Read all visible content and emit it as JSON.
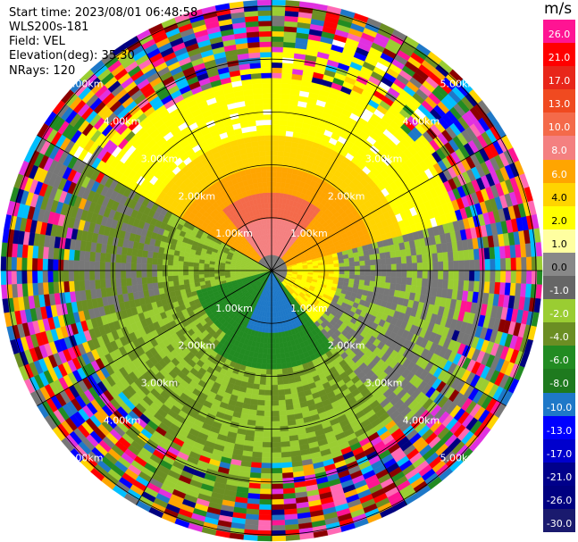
{
  "header": {
    "start_time": "Start time: 2023/08/01 06:48:58",
    "instrument": "WLS200s-181",
    "field": "Field: VEL",
    "elevation": "Elevation(deg): 35.30",
    "nrays": "NRays: 120"
  },
  "chart_data": {
    "type": "heatmap",
    "projection": "polar-ppi",
    "field": "VEL",
    "units": "m/s",
    "n_rays": 120,
    "elevation_deg": 35.3,
    "range_rings_km": [
      1.0,
      2.0,
      3.0,
      4.0,
      5.0
    ],
    "ring_labels": [
      "1.00km",
      "2.00km",
      "3.00km",
      "4.00km",
      "5.00km"
    ],
    "radial_lines_deg": [
      0,
      30,
      60,
      90,
      120,
      150,
      180,
      210,
      240,
      270,
      300,
      330
    ],
    "colorbar": {
      "title": "m/s",
      "tick_labels": [
        "26.0",
        "21.0",
        "17.0",
        "13.0",
        "10.0",
        "8.0",
        "6.0",
        "4.0",
        "2.0",
        "1.0",
        "0.0",
        "-1.0",
        "-2.0",
        "-4.0",
        "-6.0",
        "-8.0",
        "-10.0",
        "-13.0",
        "-17.0",
        "-21.0",
        "-26.0",
        "-30.0"
      ],
      "colors": [
        "#ff1493",
        "#ff0000",
        "#e8261a",
        "#f04a20",
        "#f46a4a",
        "#f48080",
        "#ffa500",
        "#ffd400",
        "#ffff00",
        "#ffffa0",
        "#888888",
        "#666666",
        "#9acd32",
        "#6b8e23",
        "#228b22",
        "#1e7a1e",
        "#1e78c8",
        "#0000ff",
        "#0000cd",
        "#00008b",
        "#000080",
        "#1a1a6e"
      ]
    }
  }
}
